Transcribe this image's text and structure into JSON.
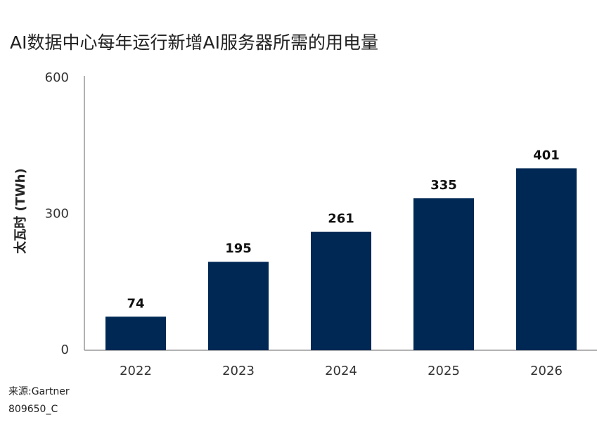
{
  "chart_data": {
    "type": "bar",
    "title": "AI数据中心每年运行新增AI服务器所需的用电量",
    "y_label": "太瓦时 (TWh)",
    "categories": [
      "2022",
      "2023",
      "2024",
      "2025",
      "2026"
    ],
    "values": [
      74,
      195,
      261,
      335,
      401
    ],
    "color": "#002855",
    "ylim": [
      0,
      600
    ],
    "yticks": [
      0,
      300,
      600
    ],
    "grid": false,
    "source": "来源:Gartner",
    "code": "809650_C"
  }
}
